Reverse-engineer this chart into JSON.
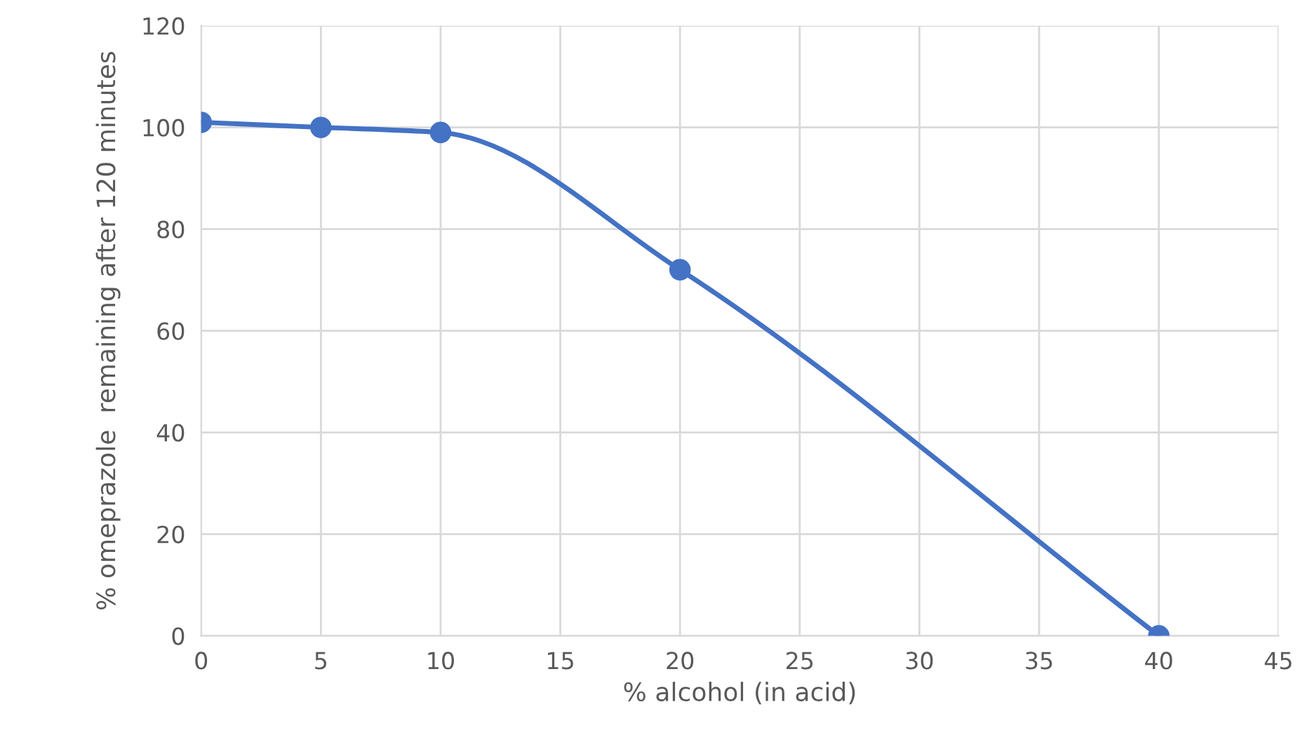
{
  "chart_data": {
    "type": "line",
    "xlabel": "% alcohol (in acid)",
    "ylabel": "% omeprazole  remaining after 120 minutes",
    "x": [
      0,
      5,
      10,
      20,
      40
    ],
    "series": [
      {
        "color": "#4472c4",
        "values": [
          101,
          100,
          99,
          72,
          0
        ]
      }
    ],
    "xlim": [
      0,
      45
    ],
    "xticks": [
      0,
      5,
      10,
      15,
      20,
      25,
      30,
      35,
      40,
      45
    ],
    "ylim": [
      0,
      120
    ],
    "yticks": [
      0,
      20,
      40,
      60,
      80,
      100,
      120
    ],
    "grid": true,
    "marker": "circle",
    "line_style": "solid"
  }
}
